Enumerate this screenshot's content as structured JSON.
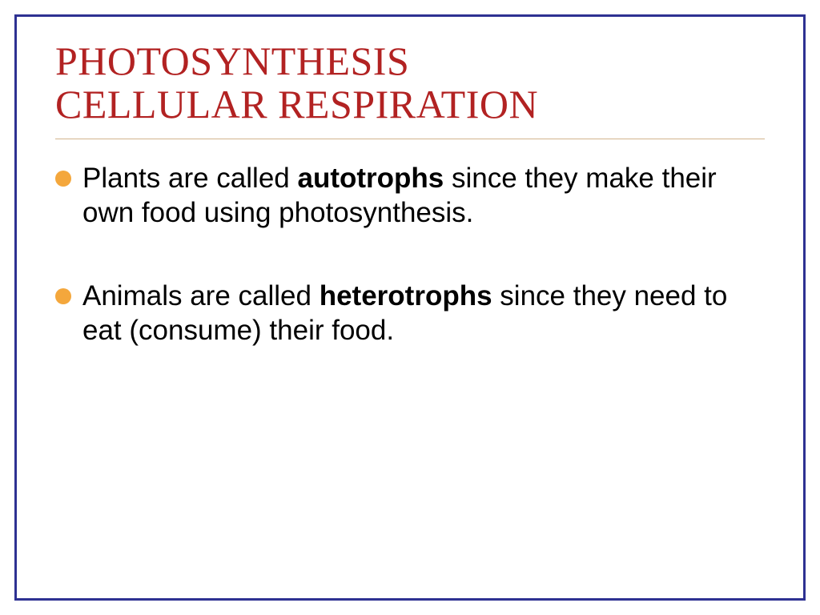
{
  "slide": {
    "title_line1": "PHOTOSYNTHESIS",
    "title_line2": "CELLULAR RESPIRATION",
    "title_color": "#b22222",
    "title_fontsize": 50,
    "border_color": "#2e3192",
    "divider_color": "#d2b48c",
    "bullet_color": "#f4a73c",
    "body_fontsize": 35,
    "body_color": "#000000",
    "background_color": "#ffffff",
    "bullets": [
      {
        "pre": "Plants are called ",
        "bold": "autotrophs",
        "post": " since they make their own food using photosynthesis."
      },
      {
        "pre": "Animals are called ",
        "bold": "heterotrophs",
        "post": " since they need to eat (consume) their food."
      }
    ]
  }
}
